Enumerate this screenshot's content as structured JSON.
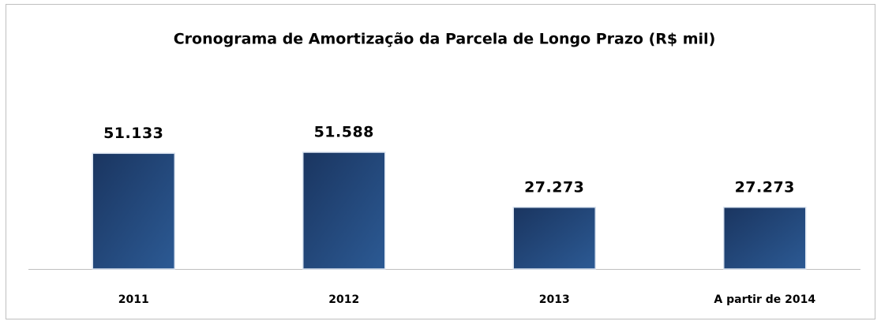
{
  "chart_data": {
    "type": "bar",
    "title": "Cronograma de Amortização da Parcela de Longo Prazo (R$ mil)",
    "categories": [
      "2011",
      "2012",
      "2013",
      "A partir de 2014"
    ],
    "values": [
      51133,
      51588,
      27273,
      27273
    ],
    "value_labels": [
      "51.133",
      "51.588",
      "27.273",
      "27.273"
    ],
    "color": "#2c5a94"
  }
}
